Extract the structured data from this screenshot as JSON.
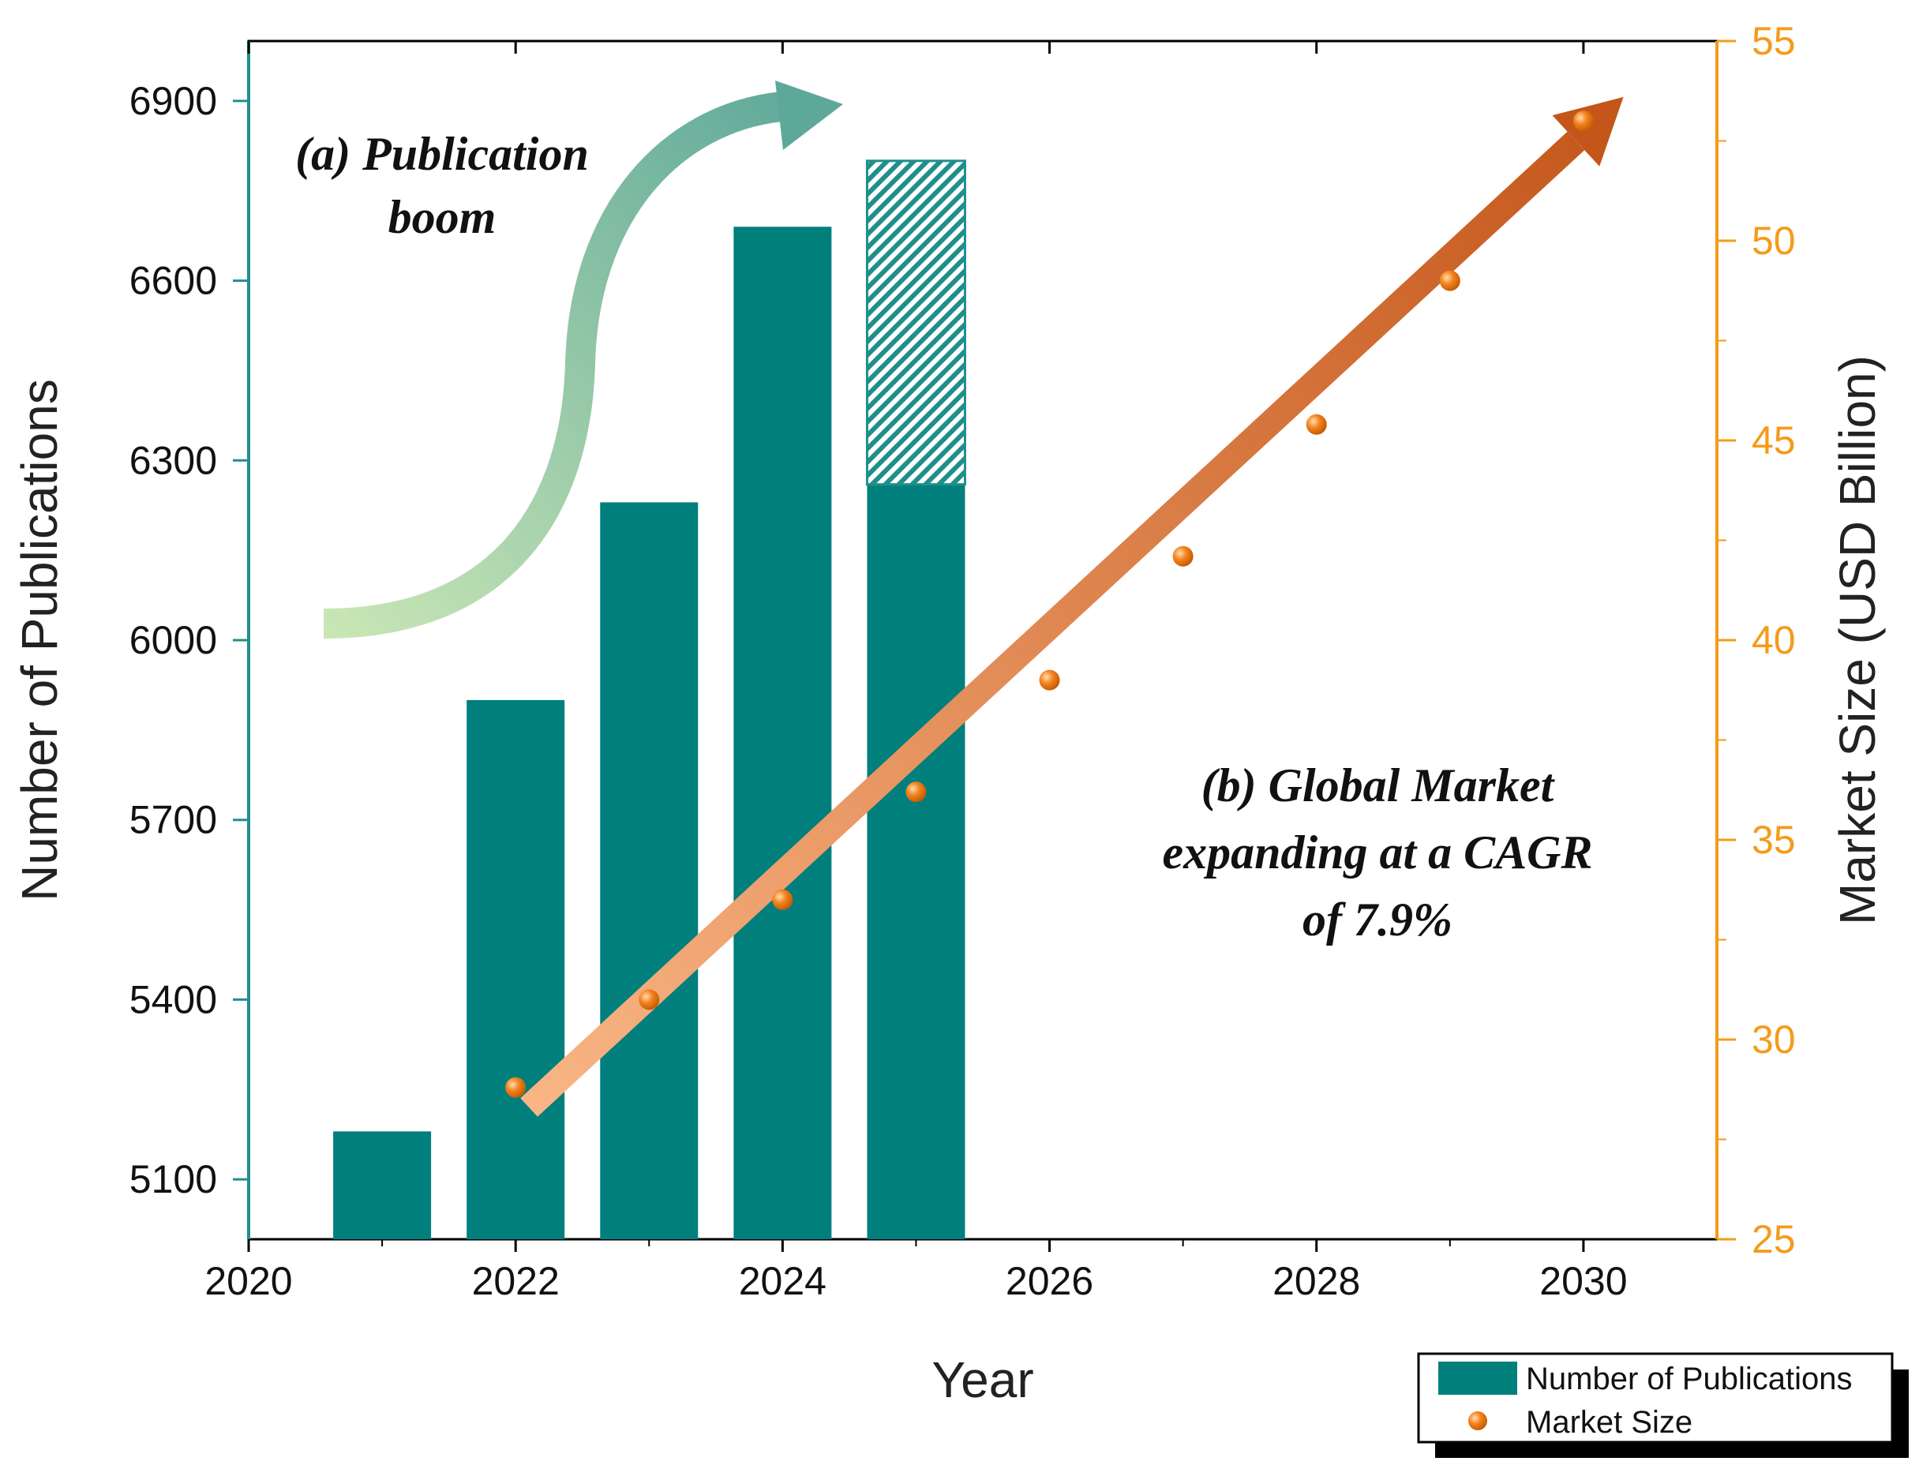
{
  "colors": {
    "bar": "#007f7d",
    "market": "#f58220",
    "right_axis": "#f59b1a",
    "left_axis": "#1f8f8c",
    "trend_start": "#f9b585",
    "trend_end": "#c4561a",
    "boom_arrow_start": "#c9e6b5",
    "boom_arrow_end": "#5ea89a"
  },
  "chart_data": {
    "type": "bar+scatter",
    "xlabel": "Year",
    "ylabel_left": "Number of Publications",
    "ylabel_right": "Market Size (USD Billion)",
    "xlim": [
      2020,
      2031
    ],
    "ylim_left": [
      5000,
      7000
    ],
    "ylim_right": [
      25,
      55
    ],
    "x_ticks": [
      2020,
      2022,
      2024,
      2026,
      2028,
      2030
    ],
    "x_tick_labels": [
      "2020",
      "2022",
      "2024",
      "2026",
      "2028",
      "2030"
    ],
    "y_left_ticks": [
      5100,
      5400,
      5700,
      6000,
      6300,
      6600,
      6900
    ],
    "y_left_tick_labels": [
      "5100",
      "5400",
      "5700",
      "6000",
      "6300",
      "6600",
      "6900"
    ],
    "y_right_ticks": [
      25,
      30,
      35,
      40,
      45,
      50,
      55
    ],
    "y_right_tick_labels": [
      "25",
      "30",
      "35",
      "40",
      "45",
      "50",
      "55"
    ],
    "publications": {
      "name": "Number of Publications",
      "x": [
        2021,
        2022,
        2023,
        2024,
        2025
      ],
      "values": [
        5180,
        5900,
        6230,
        6690,
        6260
      ],
      "projected_top": {
        "x": 2025,
        "from": 6260,
        "to": 6800
      }
    },
    "market_size": {
      "name": "Market Size",
      "x": [
        2022,
        2023,
        2024,
        2025,
        2026,
        2027,
        2028,
        2029,
        2030
      ],
      "values": [
        28.8,
        31.0,
        33.5,
        36.2,
        39.0,
        42.1,
        45.4,
        49.0,
        53.0
      ]
    },
    "trend_arrow": {
      "from": [
        2022.1,
        28.3
      ],
      "to": [
        2030.3,
        53.6
      ]
    },
    "annotations": {
      "a_line1": "(a) Publication",
      "a_line2": "boom",
      "b_line1": "(b) Global Market",
      "b_line2": "expanding at a CAGR",
      "b_line3": "of 7.9%"
    },
    "legend": {
      "position": "bottom-right",
      "entries": [
        "Number of Publications",
        "Market Size"
      ]
    }
  }
}
